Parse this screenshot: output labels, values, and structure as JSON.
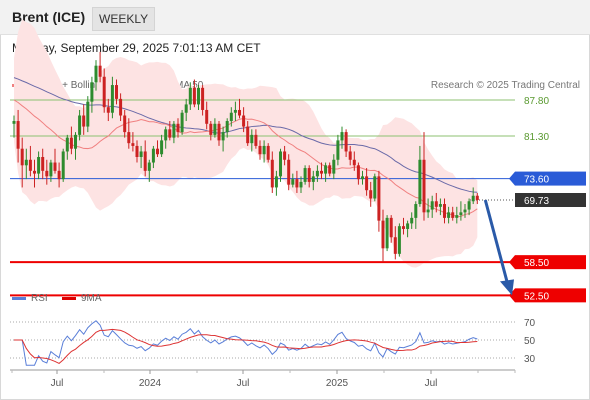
{
  "header": {
    "instrument": "Brent (ICE)",
    "timeframe": "WEEKLY"
  },
  "datetime": "Monday, September 29, 2025 7:01:13 AM CET",
  "legend": {
    "ma20_bb": "MA 20 + Bollinger Bands",
    "ma50": "MA 50",
    "copyright": "Research © 2025 Trading Central"
  },
  "rsi_legend": {
    "rsi": "RSI",
    "ma9": "9MA"
  },
  "colors": {
    "up_candle": "#2e8b2e",
    "down_candle": "#cc2222",
    "ma20": "#f08080",
    "bollinger_fill": "#fde3e3",
    "ma50": "#6a6aa8",
    "resistance_green": "#8cc070",
    "pivot_blue": "#2a5bd7",
    "support_red": "#ee0000",
    "forecast_arrow": "#2a5aa8",
    "rsi_line": "#5a7fd8",
    "rsi_ma": "#dd3333",
    "current_price_tag": "#333333"
  },
  "price_levels": [
    {
      "label": "87.80",
      "value": 87.8,
      "style": "resistance"
    },
    {
      "label": "81.30",
      "value": 81.3,
      "style": "resistance"
    },
    {
      "label": "73.60",
      "value": 73.6,
      "style": "pivot"
    },
    {
      "label": "69.73",
      "value": 69.73,
      "style": "current"
    },
    {
      "label": "58.50",
      "value": 58.5,
      "style": "support"
    },
    {
      "label": "52.50",
      "value": 52.5,
      "style": "support"
    }
  ],
  "rsi_levels": [
    {
      "label": "70",
      "value": 70
    },
    {
      "label": "50",
      "value": 50
    },
    {
      "label": "30",
      "value": 30
    }
  ],
  "chart_data": {
    "type": "candlestick",
    "timeframe": "weekly",
    "x_labels": [
      "Jul",
      "2024",
      "Jul",
      "2025",
      "Jul"
    ],
    "ylim": [
      50,
      100
    ],
    "ohlc": [
      {
        "o": 83.5,
        "h": 85.0,
        "l": 81.0,
        "c": 84.0
      },
      {
        "o": 84.0,
        "h": 86.0,
        "l": 76.5,
        "c": 79.0
      },
      {
        "o": 79.0,
        "h": 81.0,
        "l": 72.0,
        "c": 76.0
      },
      {
        "o": 76.0,
        "h": 79.0,
        "l": 73.5,
        "c": 77.0
      },
      {
        "o": 77.0,
        "h": 79.5,
        "l": 74.0,
        "c": 75.0
      },
      {
        "o": 75.0,
        "h": 77.0,
        "l": 72.0,
        "c": 74.5
      },
      {
        "o": 74.5,
        "h": 78.5,
        "l": 73.5,
        "c": 77.5
      },
      {
        "o": 77.5,
        "h": 79.0,
        "l": 73.5,
        "c": 75.0
      },
      {
        "o": 75.0,
        "h": 77.0,
        "l": 72.5,
        "c": 74.0
      },
      {
        "o": 74.0,
        "h": 77.0,
        "l": 73.0,
        "c": 76.5
      },
      {
        "o": 76.5,
        "h": 79.0,
        "l": 74.5,
        "c": 75.0
      },
      {
        "o": 75.0,
        "h": 76.5,
        "l": 72.0,
        "c": 73.5
      },
      {
        "o": 73.5,
        "h": 79.0,
        "l": 73.0,
        "c": 78.5
      },
      {
        "o": 78.5,
        "h": 81.5,
        "l": 77.0,
        "c": 81.0
      },
      {
        "o": 81.0,
        "h": 83.0,
        "l": 78.0,
        "c": 79.0
      },
      {
        "o": 79.0,
        "h": 82.0,
        "l": 77.0,
        "c": 81.5
      },
      {
        "o": 81.5,
        "h": 86.0,
        "l": 80.5,
        "c": 85.0
      },
      {
        "o": 85.0,
        "h": 87.0,
        "l": 81.5,
        "c": 83.0
      },
      {
        "o": 83.0,
        "h": 88.5,
        "l": 82.0,
        "c": 87.5
      },
      {
        "o": 87.5,
        "h": 92.0,
        "l": 85.5,
        "c": 91.0
      },
      {
        "o": 91.0,
        "h": 95.0,
        "l": 89.5,
        "c": 94.0
      },
      {
        "o": 94.0,
        "h": 96.5,
        "l": 91.0,
        "c": 92.0
      },
      {
        "o": 92.0,
        "h": 93.5,
        "l": 85.5,
        "c": 86.5
      },
      {
        "o": 86.5,
        "h": 88.0,
        "l": 84.0,
        "c": 85.5
      },
      {
        "o": 85.5,
        "h": 92.0,
        "l": 84.5,
        "c": 90.5
      },
      {
        "o": 90.5,
        "h": 91.5,
        "l": 87.0,
        "c": 88.0
      },
      {
        "o": 88.0,
        "h": 89.0,
        "l": 84.0,
        "c": 85.0
      },
      {
        "o": 85.0,
        "h": 86.0,
        "l": 81.0,
        "c": 82.0
      },
      {
        "o": 82.0,
        "h": 84.5,
        "l": 79.0,
        "c": 80.0
      },
      {
        "o": 80.0,
        "h": 82.0,
        "l": 78.5,
        "c": 79.5
      },
      {
        "o": 79.5,
        "h": 80.5,
        "l": 76.5,
        "c": 77.5
      },
      {
        "o": 77.5,
        "h": 79.5,
        "l": 75.5,
        "c": 78.5
      },
      {
        "o": 78.5,
        "h": 80.5,
        "l": 74.0,
        "c": 75.0
      },
      {
        "o": 75.0,
        "h": 77.0,
        "l": 73.0,
        "c": 76.5
      },
      {
        "o": 76.5,
        "h": 79.5,
        "l": 75.5,
        "c": 79.0
      },
      {
        "o": 79.0,
        "h": 80.5,
        "l": 77.5,
        "c": 78.0
      },
      {
        "o": 78.0,
        "h": 81.5,
        "l": 77.5,
        "c": 80.5
      },
      {
        "o": 80.5,
        "h": 83.0,
        "l": 79.0,
        "c": 82.5
      },
      {
        "o": 82.5,
        "h": 84.0,
        "l": 80.5,
        "c": 81.0
      },
      {
        "o": 81.0,
        "h": 84.0,
        "l": 80.0,
        "c": 83.5
      },
      {
        "o": 83.5,
        "h": 84.5,
        "l": 81.0,
        "c": 82.0
      },
      {
        "o": 82.0,
        "h": 86.0,
        "l": 81.5,
        "c": 85.5
      },
      {
        "o": 85.5,
        "h": 88.0,
        "l": 84.0,
        "c": 87.0
      },
      {
        "o": 87.0,
        "h": 91.0,
        "l": 86.0,
        "c": 90.0
      },
      {
        "o": 90.0,
        "h": 91.5,
        "l": 86.5,
        "c": 87.0
      },
      {
        "o": 87.0,
        "h": 90.5,
        "l": 86.0,
        "c": 90.0
      },
      {
        "o": 90.0,
        "h": 90.5,
        "l": 85.0,
        "c": 86.0
      },
      {
        "o": 86.0,
        "h": 87.5,
        "l": 82.5,
        "c": 83.5
      },
      {
        "o": 83.5,
        "h": 84.0,
        "l": 80.5,
        "c": 81.5
      },
      {
        "o": 81.5,
        "h": 84.5,
        "l": 81.0,
        "c": 83.5
      },
      {
        "o": 83.5,
        "h": 84.0,
        "l": 79.5,
        "c": 80.5
      },
      {
        "o": 80.5,
        "h": 83.0,
        "l": 78.5,
        "c": 82.0
      },
      {
        "o": 82.0,
        "h": 84.5,
        "l": 81.0,
        "c": 84.0
      },
      {
        "o": 84.0,
        "h": 86.5,
        "l": 83.0,
        "c": 85.5
      },
      {
        "o": 85.5,
        "h": 87.5,
        "l": 84.0,
        "c": 86.0
      },
      {
        "o": 86.0,
        "h": 88.0,
        "l": 84.5,
        "c": 85.0
      },
      {
        "o": 85.0,
        "h": 86.5,
        "l": 82.0,
        "c": 83.0
      },
      {
        "o": 83.0,
        "h": 84.0,
        "l": 79.5,
        "c": 80.0
      },
      {
        "o": 80.0,
        "h": 82.5,
        "l": 78.5,
        "c": 81.5
      },
      {
        "o": 81.5,
        "h": 82.5,
        "l": 79.0,
        "c": 79.5
      },
      {
        "o": 79.5,
        "h": 80.5,
        "l": 77.0,
        "c": 78.0
      },
      {
        "o": 78.0,
        "h": 80.5,
        "l": 76.5,
        "c": 79.5
      },
      {
        "o": 79.5,
        "h": 80.0,
        "l": 76.5,
        "c": 77.0
      },
      {
        "o": 77.0,
        "h": 78.5,
        "l": 71.0,
        "c": 72.0
      },
      {
        "o": 72.0,
        "h": 75.0,
        "l": 70.5,
        "c": 74.0
      },
      {
        "o": 74.0,
        "h": 79.0,
        "l": 73.0,
        "c": 78.5
      },
      {
        "o": 78.5,
        "h": 79.5,
        "l": 76.0,
        "c": 77.0
      },
      {
        "o": 77.0,
        "h": 78.0,
        "l": 71.5,
        "c": 72.5
      },
      {
        "o": 72.5,
        "h": 74.5,
        "l": 72.0,
        "c": 73.5
      },
      {
        "o": 73.5,
        "h": 75.0,
        "l": 71.0,
        "c": 72.0
      },
      {
        "o": 72.0,
        "h": 74.0,
        "l": 71.0,
        "c": 73.0
      },
      {
        "o": 73.0,
        "h": 76.0,
        "l": 72.5,
        "c": 75.5
      },
      {
        "o": 75.5,
        "h": 76.0,
        "l": 72.0,
        "c": 73.0
      },
      {
        "o": 73.0,
        "h": 75.0,
        "l": 71.5,
        "c": 74.0
      },
      {
        "o": 74.0,
        "h": 76.0,
        "l": 73.0,
        "c": 75.0
      },
      {
        "o": 75.0,
        "h": 76.5,
        "l": 73.5,
        "c": 74.5
      },
      {
        "o": 74.5,
        "h": 76.5,
        "l": 73.0,
        "c": 76.0
      },
      {
        "o": 76.0,
        "h": 76.5,
        "l": 74.0,
        "c": 74.5
      },
      {
        "o": 74.5,
        "h": 78.0,
        "l": 73.5,
        "c": 77.0
      },
      {
        "o": 77.0,
        "h": 81.5,
        "l": 76.0,
        "c": 80.5
      },
      {
        "o": 80.5,
        "h": 83.0,
        "l": 79.0,
        "c": 82.0
      },
      {
        "o": 82.0,
        "h": 82.5,
        "l": 77.5,
        "c": 78.5
      },
      {
        "o": 78.5,
        "h": 79.5,
        "l": 76.0,
        "c": 77.0
      },
      {
        "o": 77.0,
        "h": 78.5,
        "l": 75.0,
        "c": 76.0
      },
      {
        "o": 76.0,
        "h": 76.5,
        "l": 72.5,
        "c": 73.5
      },
      {
        "o": 73.5,
        "h": 75.0,
        "l": 72.5,
        "c": 74.0
      },
      {
        "o": 74.0,
        "h": 75.5,
        "l": 70.5,
        "c": 71.5
      },
      {
        "o": 71.5,
        "h": 73.0,
        "l": 68.5,
        "c": 70.0
      },
      {
        "o": 70.0,
        "h": 74.5,
        "l": 69.5,
        "c": 74.0
      },
      {
        "o": 74.0,
        "h": 75.0,
        "l": 64.0,
        "c": 66.0
      },
      {
        "o": 66.0,
        "h": 68.0,
        "l": 58.5,
        "c": 61.0
      },
      {
        "o": 61.0,
        "h": 67.0,
        "l": 60.5,
        "c": 66.5
      },
      {
        "o": 66.5,
        "h": 67.0,
        "l": 62.0,
        "c": 63.0
      },
      {
        "o": 63.0,
        "h": 65.0,
        "l": 59.0,
        "c": 60.0
      },
      {
        "o": 60.0,
        "h": 65.5,
        "l": 59.5,
        "c": 65.0
      },
      {
        "o": 65.0,
        "h": 66.5,
        "l": 63.5,
        "c": 64.5
      },
      {
        "o": 64.5,
        "h": 66.0,
        "l": 63.0,
        "c": 65.5
      },
      {
        "o": 65.5,
        "h": 67.5,
        "l": 64.5,
        "c": 66.5
      },
      {
        "o": 66.5,
        "h": 69.5,
        "l": 64.5,
        "c": 69.0
      },
      {
        "o": 69.0,
        "h": 79.5,
        "l": 68.5,
        "c": 77.0
      },
      {
        "o": 77.0,
        "h": 82.0,
        "l": 66.0,
        "c": 67.5
      },
      {
        "o": 67.5,
        "h": 70.0,
        "l": 66.5,
        "c": 68.0
      },
      {
        "o": 68.0,
        "h": 70.5,
        "l": 66.5,
        "c": 69.5
      },
      {
        "o": 69.5,
        "h": 71.0,
        "l": 67.5,
        "c": 68.5
      },
      {
        "o": 68.5,
        "h": 70.0,
        "l": 67.0,
        "c": 69.0
      },
      {
        "o": 69.0,
        "h": 70.0,
        "l": 65.5,
        "c": 66.5
      },
      {
        "o": 66.5,
        "h": 68.5,
        "l": 65.5,
        "c": 67.5
      },
      {
        "o": 67.5,
        "h": 68.5,
        "l": 66.0,
        "c": 66.5
      },
      {
        "o": 66.5,
        "h": 68.5,
        "l": 65.5,
        "c": 67.0
      },
      {
        "o": 67.0,
        "h": 69.5,
        "l": 66.0,
        "c": 67.5
      },
      {
        "o": 67.5,
        "h": 69.0,
        "l": 66.5,
        "c": 68.0
      },
      {
        "o": 68.0,
        "h": 70.0,
        "l": 67.0,
        "c": 69.5
      },
      {
        "o": 69.5,
        "h": 72.0,
        "l": 69.0,
        "c": 70.5
      },
      {
        "o": 70.5,
        "h": 71.0,
        "l": 69.0,
        "c": 69.73
      }
    ],
    "ma20_start": 88.0,
    "ma50_start": 92.0,
    "forecast": {
      "from": 69.73,
      "to": 52.5
    },
    "rsi": {
      "ylim": [
        20,
        80
      ],
      "levels": [
        70,
        50,
        30
      ]
    }
  }
}
